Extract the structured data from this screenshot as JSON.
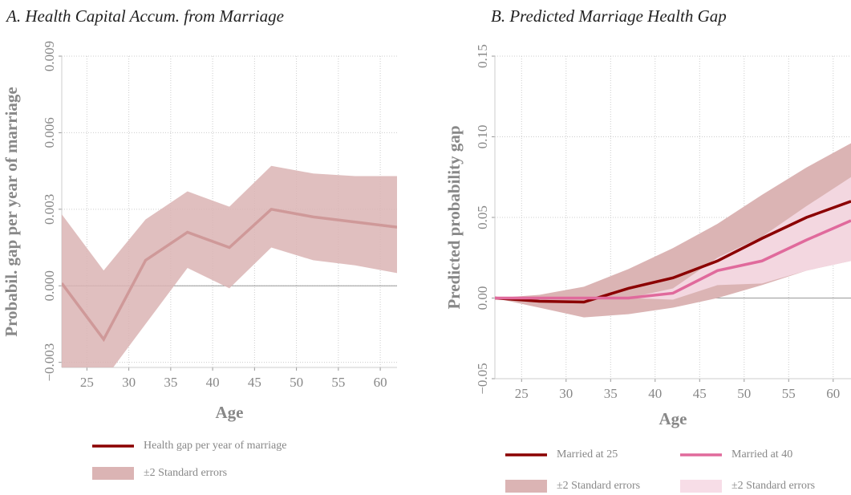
{
  "chart_data": [
    {
      "type": "line",
      "title": "A. Health Capital Accum. from Marriage",
      "xlabel": "Age",
      "ylabel": "Probabil. gap per year of marriage",
      "x": [
        22,
        27,
        32,
        37,
        42,
        47,
        52,
        57,
        62
      ],
      "xlim": [
        22,
        62
      ],
      "xticks": [
        25,
        30,
        35,
        40,
        45,
        50,
        55,
        60
      ],
      "ylim": [
        -0.0032,
        0.009
      ],
      "yticks": [
        {
          "value": -0.003,
          "label": "−0.003"
        },
        {
          "value": 0,
          "label": "0.000"
        },
        0.003,
        0.006,
        0.009
      ],
      "grid": true,
      "series": [
        {
          "name": "Health gap per year of marriage",
          "color": "#8b0000",
          "values": [
            0.0001,
            -0.0021,
            0.001,
            0.0021,
            0.0015,
            0.003,
            0.0027,
            0.0025,
            0.0023
          ]
        },
        {
          "name": "±2 Standard errors",
          "color": "#dbb4b4",
          "type": "band",
          "upper": [
            0.0028,
            0.0006,
            0.0026,
            0.0037,
            0.0031,
            0.0047,
            0.0044,
            0.0043,
            0.0043
          ],
          "lower": [
            -0.0035,
            -0.0037,
            -0.0015,
            0.0007,
            -0.0001,
            0.0015,
            0.001,
            0.0008,
            0.0005
          ]
        }
      ]
    },
    {
      "type": "line",
      "title": "B. Predicted Marriage Health Gap",
      "xlabel": "Age",
      "ylabel": "Predicted probability gap",
      "x": [
        22,
        27,
        32,
        37,
        42,
        47,
        52,
        57,
        62
      ],
      "xlim": [
        22,
        62
      ],
      "xticks": [
        25,
        30,
        35,
        40,
        45,
        50,
        55,
        60
      ],
      "ylim": [
        -0.05,
        0.15
      ],
      "yticks": [
        {
          "value": -0.05,
          "label": "−0.05"
        },
        {
          "value": 0,
          "label": "0.00"
        },
        0.05,
        {
          "value": 0.1,
          "label": "0.10"
        },
        0.15
      ],
      "grid": true,
      "series": [
        {
          "name": "±2 Standard errors",
          "color": "#dbb4b4",
          "type": "band",
          "upper": [
            0,
            0.002,
            0.007,
            0.018,
            0.031,
            0.046,
            0.064,
            0.081,
            0.096
          ],
          "lower": [
            0,
            -0.006,
            -0.012,
            -0.01,
            -0.006,
            0,
            0.008,
            0.017,
            0.023
          ]
        },
        {
          "name": "±2 Standard errors",
          "color": "#f7dde7",
          "type": "band",
          "upper": [
            0,
            0,
            0,
            0,
            0.006,
            0.025,
            0.038,
            0.057,
            0.075
          ],
          "lower": [
            0,
            0,
            0,
            0,
            -0.001,
            0.008,
            0.009,
            0.017,
            0.023
          ]
        },
        {
          "name": "Married at 25",
          "color": "#8b0000",
          "values": [
            0,
            -0.002,
            -0.0025,
            0.006,
            0.0125,
            0.023,
            0.037,
            0.05,
            0.06
          ]
        },
        {
          "name": "Married at 40",
          "color": "#e06a9c",
          "values": [
            0,
            0,
            0,
            0,
            0.003,
            0.017,
            0.023,
            0.036,
            0.048
          ]
        }
      ]
    }
  ]
}
